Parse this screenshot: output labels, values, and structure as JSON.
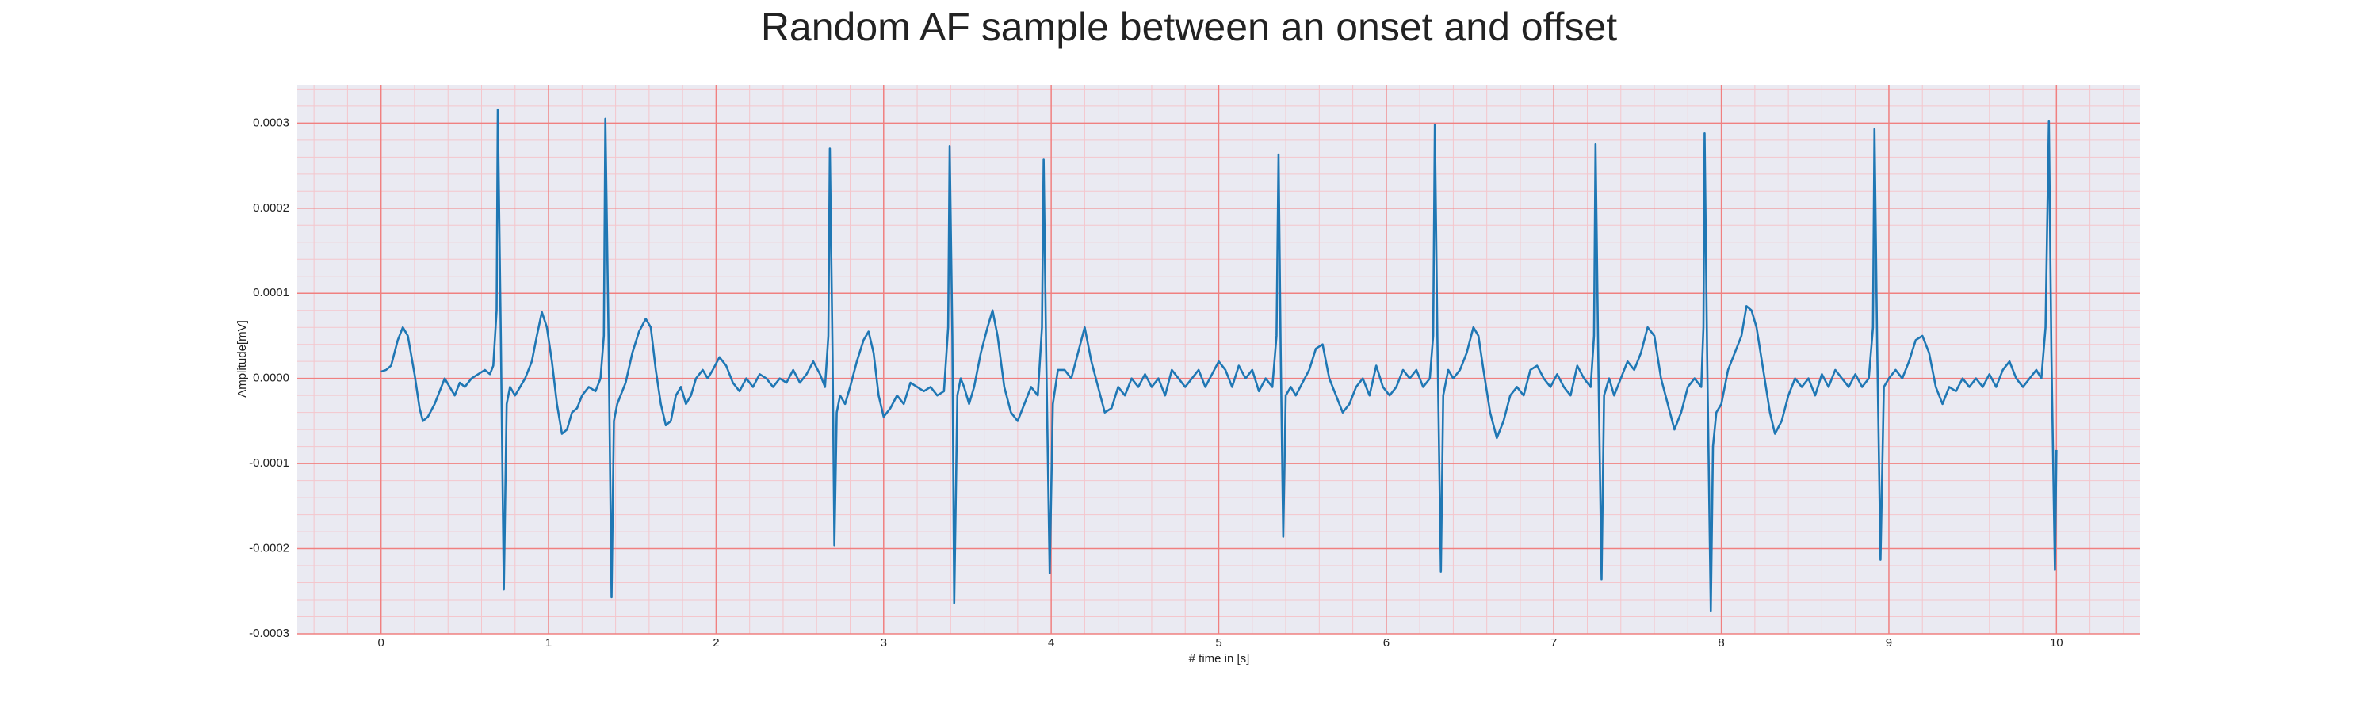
{
  "chart_data": {
    "type": "line",
    "title": "Random AF sample between an onset and offset",
    "xlabel": "# time in [s]",
    "ylabel": "Amplitude[mV]",
    "color": "#1f77b4",
    "background": "#eaeaf2",
    "grid": true,
    "grid_color": "#f08080",
    "minor_grid_color": "#f4c6cc",
    "xlim": [
      -0.5,
      10.5
    ],
    "ylim": [
      -0.0003,
      0.000345
    ],
    "xticks": [
      0,
      1,
      2,
      3,
      4,
      5,
      6,
      7,
      8,
      9,
      10
    ],
    "yticks": [
      -0.0003,
      -0.0002,
      -0.0001,
      {
        "value": 0,
        "label": "0.0000"
      },
      0.0001,
      0.0002,
      0.0003
    ],
    "xminorticks": [
      -0.4,
      -0.2,
      0.2,
      0.4,
      0.6,
      0.8,
      1.2,
      1.4,
      1.6,
      1.8,
      2.2,
      2.4,
      2.6,
      2.8,
      3.2,
      3.4,
      3.6,
      3.8,
      4.2,
      4.4,
      4.6,
      4.8,
      5.2,
      5.4,
      5.6,
      5.8,
      6.2,
      6.4,
      6.6,
      6.8,
      7.2,
      7.4,
      7.6,
      7.8,
      8.2,
      8.4,
      8.6,
      8.8,
      9.2,
      9.4,
      9.6,
      9.8,
      10.2,
      10.4
    ],
    "yminorticks": [
      -0.00028,
      -0.00026,
      -0.00024,
      -0.00022,
      -0.00018,
      -0.00016,
      -0.00014,
      -0.00012,
      -8e-05,
      -6e-05,
      -4e-05,
      -2e-05,
      2e-05,
      4e-05,
      6e-05,
      8e-05,
      0.00012,
      0.00014,
      0.00016,
      0.00018,
      0.00022,
      0.00024,
      0.00026,
      0.00028,
      0.00032,
      0.00034
    ],
    "x": [
      0,
      0.03,
      0.06,
      0.1,
      0.13,
      0.16,
      0.2,
      0.23,
      0.25,
      0.28,
      0.32,
      0.36,
      0.38,
      0.41,
      0.44,
      0.47,
      0.5,
      0.54,
      0.58,
      0.62,
      0.65,
      0.67,
      0.69,
      0.697,
      0.715,
      0.733,
      0.75,
      0.77,
      0.8,
      0.83,
      0.86,
      0.9,
      0.93,
      0.96,
      0.99,
      1.02,
      1.05,
      1.08,
      1.11,
      1.14,
      1.17,
      1.2,
      1.24,
      1.28,
      1.31,
      1.33,
      1.339,
      1.358,
      1.376,
      1.39,
      1.41,
      1.43,
      1.46,
      1.5,
      1.54,
      1.58,
      1.61,
      1.64,
      1.67,
      1.7,
      1.73,
      1.76,
      1.79,
      1.82,
      1.85,
      1.88,
      1.92,
      1.95,
      1.98,
      2.02,
      2.06,
      2.1,
      2.14,
      2.18,
      2.22,
      2.26,
      2.3,
      2.34,
      2.38,
      2.42,
      2.46,
      2.5,
      2.54,
      2.58,
      2.62,
      2.65,
      2.67,
      2.679,
      2.695,
      2.706,
      2.72,
      2.74,
      2.77,
      2.8,
      2.84,
      2.88,
      2.91,
      2.94,
      2.97,
      3.0,
      3.04,
      3.08,
      3.12,
      3.16,
      3.2,
      3.24,
      3.28,
      3.32,
      3.36,
      3.385,
      3.394,
      3.41,
      3.421,
      3.44,
      3.46,
      3.48,
      3.51,
      3.54,
      3.58,
      3.62,
      3.65,
      3.68,
      3.72,
      3.76,
      3.8,
      3.84,
      3.88,
      3.92,
      3.945,
      3.955,
      3.97,
      3.991,
      4.01,
      4.04,
      4.08,
      4.12,
      4.16,
      4.2,
      4.24,
      4.28,
      4.32,
      4.36,
      4.4,
      4.44,
      4.48,
      4.52,
      4.56,
      4.6,
      4.64,
      4.68,
      4.72,
      4.76,
      4.8,
      4.84,
      4.88,
      4.92,
      4.96,
      5.0,
      5.04,
      5.08,
      5.12,
      5.16,
      5.2,
      5.24,
      5.28,
      5.32,
      5.345,
      5.357,
      5.37,
      5.385,
      5.4,
      5.43,
      5.46,
      5.5,
      5.54,
      5.58,
      5.62,
      5.66,
      5.7,
      5.74,
      5.78,
      5.82,
      5.86,
      5.9,
      5.94,
      5.98,
      6.02,
      6.06,
      6.1,
      6.14,
      6.18,
      6.22,
      6.26,
      6.28,
      6.29,
      6.305,
      6.326,
      6.34,
      6.37,
      6.4,
      6.44,
      6.48,
      6.52,
      6.55,
      6.58,
      6.62,
      6.66,
      6.7,
      6.74,
      6.78,
      6.82,
      6.86,
      6.9,
      6.94,
      6.98,
      7.02,
      7.06,
      7.1,
      7.14,
      7.18,
      7.22,
      7.24,
      7.249,
      7.265,
      7.285,
      7.3,
      7.33,
      7.36,
      7.4,
      7.44,
      7.48,
      7.52,
      7.56,
      7.6,
      7.64,
      7.68,
      7.72,
      7.76,
      7.8,
      7.84,
      7.88,
      7.893,
      7.9,
      7.915,
      7.937,
      7.95,
      7.97,
      8.0,
      8.04,
      8.08,
      8.12,
      8.15,
      8.18,
      8.21,
      8.25,
      8.29,
      8.32,
      8.36,
      8.4,
      8.44,
      8.48,
      8.52,
      8.56,
      8.6,
      8.64,
      8.68,
      8.72,
      8.76,
      8.8,
      8.84,
      8.88,
      8.905,
      8.914,
      8.93,
      8.95,
      8.97,
      9.0,
      9.04,
      9.08,
      9.12,
      9.16,
      9.2,
      9.24,
      9.28,
      9.32,
      9.36,
      9.4,
      9.44,
      9.48,
      9.52,
      9.56,
      9.6,
      9.64,
      9.68,
      9.72,
      9.76,
      9.8,
      9.84,
      9.88,
      9.91,
      9.935,
      9.955,
      9.97,
      9.991,
      10.0
    ],
    "values": [
      8e-06,
      1e-05,
      1.5e-05,
      4.5e-05,
      6e-05,
      5e-05,
      5e-06,
      -3.5e-05,
      -5e-05,
      -4.5e-05,
      -3e-05,
      -1e-05,
      0,
      -1e-05,
      -2e-05,
      -5e-06,
      -1e-05,
      0,
      5e-06,
      1e-05,
      5e-06,
      1.5e-05,
      8e-05,
      0.000316,
      5e-05,
      -0.000248,
      -3e-05,
      -1e-05,
      -2e-05,
      -1e-05,
      0,
      2e-05,
      5e-05,
      7.8e-05,
      6e-05,
      2e-05,
      -3e-05,
      -6.5e-05,
      -6e-05,
      -4e-05,
      -3.5e-05,
      -2e-05,
      -1e-05,
      -1.5e-05,
      0,
      5e-05,
      0.000305,
      5e-05,
      -0.000257,
      -5e-05,
      -3e-05,
      -2e-05,
      -5e-06,
      3e-05,
      5.5e-05,
      7e-05,
      6e-05,
      1e-05,
      -3e-05,
      -5.5e-05,
      -5e-05,
      -2e-05,
      -1e-05,
      -3e-05,
      -2e-05,
      0,
      1e-05,
      0,
      1e-05,
      2.5e-05,
      1.5e-05,
      -5e-06,
      -1.5e-05,
      0,
      -1e-05,
      5e-06,
      0,
      -1e-05,
      0,
      -5e-06,
      1e-05,
      -5e-06,
      5e-06,
      2e-05,
      5e-06,
      -1e-05,
      5e-05,
      0.00027,
      3e-05,
      -0.000196,
      -4e-05,
      -2e-05,
      -3e-05,
      -1e-05,
      2e-05,
      4.5e-05,
      5.5e-05,
      3e-05,
      -2e-05,
      -4.5e-05,
      -3.5e-05,
      -2e-05,
      -3e-05,
      -5e-06,
      -1e-05,
      -1.5e-05,
      -1e-05,
      -2e-05,
      -1.5e-05,
      6e-05,
      0.000273,
      5e-05,
      -0.000264,
      -2e-05,
      0,
      -1e-05,
      -3e-05,
      -1e-05,
      3e-05,
      6e-05,
      8e-05,
      5e-05,
      -1e-05,
      -4e-05,
      -5e-05,
      -3e-05,
      -1e-05,
      -2e-05,
      6e-05,
      0.000257,
      3e-05,
      -0.000229,
      -3e-05,
      1e-05,
      1e-05,
      0,
      3e-05,
      6e-05,
      2e-05,
      -1e-05,
      -4e-05,
      -3.5e-05,
      -1e-05,
      -2e-05,
      0,
      -1e-05,
      5e-06,
      -1e-05,
      0,
      -2e-05,
      1e-05,
      0,
      -1e-05,
      0,
      1e-05,
      -1e-05,
      5e-06,
      2e-05,
      1e-05,
      -1e-05,
      1.5e-05,
      0,
      1e-05,
      -1.5e-05,
      0,
      -1e-05,
      5e-05,
      0.000263,
      3e-05,
      -0.000186,
      -2e-05,
      -1e-05,
      -2e-05,
      -5e-06,
      1e-05,
      3.5e-05,
      4e-05,
      0,
      -2e-05,
      -4e-05,
      -3e-05,
      -1e-05,
      0,
      -2e-05,
      1.5e-05,
      -1e-05,
      -2e-05,
      -1e-05,
      1e-05,
      0,
      1e-05,
      -1e-05,
      0,
      5e-05,
      0.000298,
      5e-05,
      -0.000227,
      -2e-05,
      1e-05,
      0,
      1e-05,
      3e-05,
      6e-05,
      5e-05,
      1e-05,
      -4e-05,
      -7e-05,
      -5e-05,
      -2e-05,
      -1e-05,
      -2e-05,
      1e-05,
      1.5e-05,
      0,
      -1e-05,
      5e-06,
      -1e-05,
      -2e-05,
      1.5e-05,
      0,
      -1e-05,
      5e-05,
      0.000275,
      3e-05,
      -0.000236,
      -2e-05,
      0,
      -2e-05,
      0,
      2e-05,
      1e-05,
      3e-05,
      6e-05,
      5e-05,
      0,
      -3e-05,
      -6e-05,
      -4e-05,
      -1e-05,
      0,
      -1e-05,
      6e-05,
      0.000288,
      3e-05,
      -0.000273,
      -8e-05,
      -4e-05,
      -3e-05,
      1e-05,
      3e-05,
      5e-05,
      8.5e-05,
      8e-05,
      6e-05,
      1e-05,
      -4e-05,
      -6.5e-05,
      -5e-05,
      -2e-05,
      0,
      -1e-05,
      0,
      -2e-05,
      5e-06,
      -1e-05,
      1e-05,
      0,
      -1e-05,
      5e-06,
      -1e-05,
      0,
      6e-05,
      0.000293,
      4e-05,
      -0.000213,
      -1e-05,
      0,
      1e-05,
      0,
      2e-05,
      4.5e-05,
      5e-05,
      3e-05,
      -1e-05,
      -3e-05,
      -1e-05,
      -1.5e-05,
      0,
      -1e-05,
      0,
      -1e-05,
      5e-06,
      -1e-05,
      1e-05,
      2e-05,
      0,
      -1e-05,
      0,
      1e-05,
      0,
      6e-05,
      0.000302,
      3e-05,
      -0.000225,
      -8.4e-05
    ]
  }
}
